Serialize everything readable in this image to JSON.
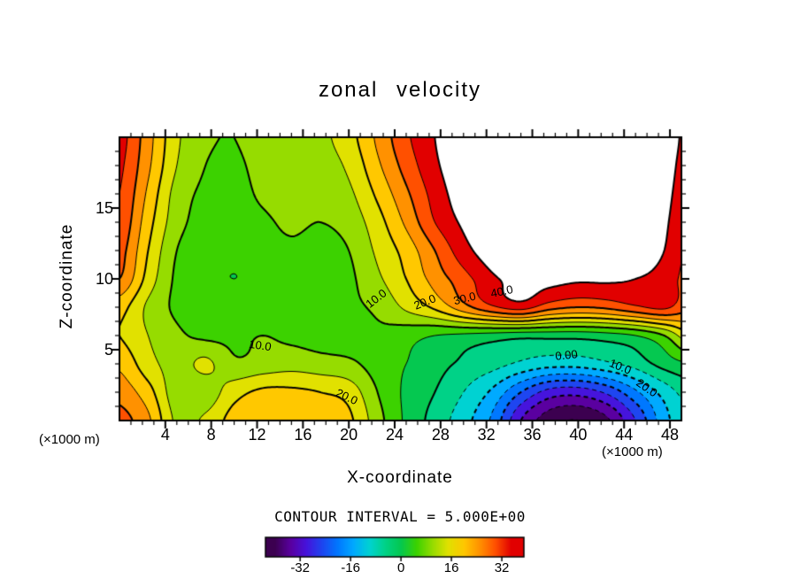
{
  "title": "zonal velocity",
  "axes": {
    "xlabel": "X-coordinate",
    "ylabel": "Z-coordinate",
    "x_unit_left": "(×1000 m)",
    "x_unit_right": "(×1000 m)",
    "x_ticks": [
      4,
      8,
      12,
      16,
      20,
      24,
      28,
      32,
      36,
      40,
      44,
      48
    ],
    "z_ticks": [
      5,
      10,
      15
    ],
    "x_range": [
      0,
      49
    ],
    "z_range": [
      0,
      20
    ],
    "x_minor_step": 1,
    "z_minor_step": 1
  },
  "contour_interval_label": "CONTOUR INTERVAL = 5.000E+00",
  "chart_data": {
    "type": "heatmap",
    "subtype": "filled_contour",
    "title": "zonal velocity",
    "xlabel": "X-coordinate",
    "ylabel": "Z-coordinate",
    "units": "×1000 m",
    "contour_interval": 5,
    "x": [
      0,
      2.5,
      5,
      7.5,
      10,
      12.5,
      15,
      17.5,
      20,
      22.5,
      25,
      27.5,
      30,
      32.5,
      35,
      37.5,
      40,
      42.5,
      45,
      47.5,
      50
    ],
    "z": [
      0,
      2,
      4,
      6,
      8,
      10,
      12,
      14,
      16,
      18,
      20
    ],
    "values": [
      [
        32,
        26,
        14,
        16,
        22,
        23,
        23,
        22,
        21,
        12,
        4,
        -2,
        -8,
        -16,
        -30,
        -38,
        -40,
        -36,
        -25,
        -12,
        -5
      ],
      [
        28,
        22,
        12,
        12,
        18,
        21,
        21,
        20,
        18,
        10,
        4,
        0,
        -5,
        -11,
        -20,
        -27,
        -28,
        -24,
        -16,
        -8,
        -2
      ],
      [
        24,
        17,
        13,
        16,
        11,
        12,
        13,
        12,
        11,
        8,
        5,
        2,
        -1,
        -3,
        -6,
        -8,
        -8,
        -6,
        -3,
        2,
        5
      ],
      [
        20,
        15,
        11,
        9,
        9,
        10,
        9,
        8,
        8,
        9,
        7,
        5,
        4,
        3,
        2,
        2,
        2,
        3,
        5,
        10,
        20
      ],
      [
        22,
        14,
        9,
        7,
        7,
        8,
        8,
        7,
        9,
        11,
        16,
        21,
        28,
        34,
        37,
        32,
        30,
        31,
        34,
        36,
        30
      ],
      [
        30,
        18,
        9,
        6,
        5,
        6,
        7,
        7,
        9,
        14,
        20,
        27,
        33,
        39,
        42,
        42,
        41,
        41,
        40,
        38,
        32
      ],
      [
        32,
        20,
        10,
        7,
        6,
        8,
        9,
        8,
        10,
        16,
        22,
        30,
        38,
        43,
        45,
        46,
        46,
        45,
        43,
        40,
        33
      ],
      [
        34,
        22,
        12,
        8,
        7,
        9,
        11,
        10,
        12,
        18,
        26,
        35,
        41,
        45,
        47,
        48,
        48,
        47,
        45,
        41,
        34
      ],
      [
        35,
        24,
        13,
        9,
        8,
        11,
        13,
        12,
        14,
        21,
        29,
        37,
        43,
        46,
        48,
        49,
        49,
        48,
        46,
        42,
        35
      ],
      [
        36,
        26,
        15,
        10,
        9,
        12,
        14,
        13,
        16,
        24,
        32,
        39,
        44,
        47,
        49,
        50,
        50,
        49,
        47,
        43,
        36
      ],
      [
        37,
        27,
        16,
        11,
        10,
        13,
        15,
        14,
        18,
        26,
        34,
        40,
        45,
        48,
        50,
        50,
        50,
        50,
        48,
        44,
        37
      ]
    ],
    "contour_labels": [
      {
        "text": "10.0",
        "x": 12.3,
        "z": 5.3,
        "angle": 8
      },
      {
        "text": "20.0",
        "x": 19.8,
        "z": 1.7,
        "angle": 25
      },
      {
        "text": "10.0",
        "x": 22.4,
        "z": 8.6,
        "angle": -38
      },
      {
        "text": "20.0",
        "x": 26.6,
        "z": 8.4,
        "angle": -22
      },
      {
        "text": "30.0",
        "x": 30.1,
        "z": 8.6,
        "angle": -14
      },
      {
        "text": "40.0",
        "x": 33.3,
        "z": 9.1,
        "angle": -12
      },
      {
        "text": "0.00",
        "x": 39.0,
        "z": 4.6,
        "angle": -6
      },
      {
        "text": "10.0",
        "x": 43.7,
        "z": 3.8,
        "angle": 22
      },
      {
        "text": "20.0",
        "x": 46.0,
        "z": 2.3,
        "angle": 35
      }
    ],
    "colorbar": {
      "ticks": [
        -32,
        -16,
        0,
        16,
        32
      ],
      "value_range": [
        -43,
        39
      ],
      "band_width": 5,
      "palette": [
        "#3c0050",
        "#5a00a0",
        "#4614dc",
        "#1e46f0",
        "#0078ff",
        "#00aaff",
        "#00d2d2",
        "#00d287",
        "#05c850",
        "#3cd200",
        "#96dc00",
        "#e1e100",
        "#ffc800",
        "#ff9100",
        "#ff5000",
        "#e10000"
      ],
      "over_color": "#ffffff",
      "line_color": "#000000"
    }
  }
}
